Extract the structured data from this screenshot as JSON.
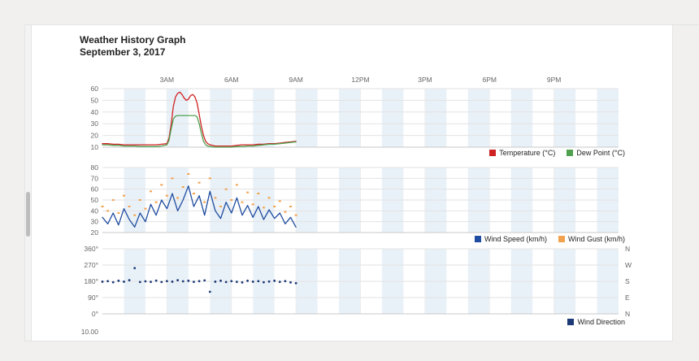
{
  "header": {
    "title": "Weather History Graph",
    "date": "September 3, 2017"
  },
  "bottom_partial_tick": "10.00",
  "style": {
    "band": "#e9f1f8",
    "grid": "#e2e2e2",
    "vgrid": "#ececec",
    "axis": "#c9c9c9",
    "tick_color": "#666666"
  },
  "chart_data": [
    {
      "type": "line",
      "title": "Temperature and Dew Point",
      "x_unit": "hour",
      "x_domain": [
        0,
        24
      ],
      "y_domain": [
        10,
        60
      ],
      "y_ticks": [
        10,
        20,
        30,
        40,
        50,
        60
      ],
      "y_suffix": "",
      "time_labels": [
        {
          "h": 3,
          "label": "3AM"
        },
        {
          "h": 6,
          "label": "6AM"
        },
        {
          "h": 9,
          "label": "9AM"
        },
        {
          "h": 12,
          "label": "12PM"
        },
        {
          "h": 15,
          "label": "3PM"
        },
        {
          "h": 18,
          "label": "6PM"
        },
        {
          "h": 21,
          "label": "9PM"
        }
      ],
      "x": [
        0,
        0.25,
        0.5,
        0.75,
        1,
        1.25,
        1.5,
        1.75,
        2,
        2.25,
        2.5,
        2.75,
        3,
        3.1,
        3.2,
        3.3,
        3.4,
        3.5,
        3.6,
        3.7,
        3.8,
        3.9,
        4,
        4.1,
        4.2,
        4.3,
        4.4,
        4.5,
        4.6,
        4.7,
        4.8,
        4.9,
        5,
        5.25,
        5.5,
        5.75,
        6,
        6.25,
        6.5,
        6.75,
        7,
        7.25,
        7.5,
        7.75,
        8,
        8.25,
        8.5,
        8.75,
        9
      ],
      "series": [
        {
          "name": "Temperature (°C)",
          "type": "line",
          "color": "#cf2222",
          "values": [
            13,
            13,
            12.5,
            12.5,
            12,
            12,
            12,
            12,
            12,
            12,
            12,
            12.5,
            13,
            18,
            30,
            45,
            53,
            56,
            57,
            55,
            52,
            50,
            51,
            54,
            55,
            53,
            48,
            38,
            28,
            20,
            15,
            13,
            12,
            11,
            11,
            11,
            11,
            11.5,
            12,
            12,
            12,
            12.5,
            12.5,
            13,
            13,
            13.5,
            14,
            14.5,
            15
          ]
        },
        {
          "name": "Dew Point (°C)",
          "type": "line",
          "color": "#4fa14f",
          "values": [
            12,
            12,
            11.5,
            11.5,
            11,
            11,
            11,
            10.5,
            10.5,
            10.5,
            10.5,
            11,
            12,
            16,
            26,
            34,
            36.5,
            37,
            37,
            37,
            37,
            37,
            37,
            37,
            37,
            37,
            36,
            30,
            22,
            15,
            12,
            11,
            10.5,
            10,
            10,
            10,
            10,
            10.5,
            10.5,
            11,
            11,
            11.5,
            12,
            12.5,
            12.5,
            13,
            13.5,
            14,
            14.5
          ]
        }
      ]
    },
    {
      "type": "line",
      "title": "Wind Speed and Wind Gust",
      "x_unit": "hour",
      "x_domain": [
        0,
        24
      ],
      "y_domain": [
        20,
        80
      ],
      "y_ticks": [
        20,
        30,
        40,
        50,
        60,
        70,
        80
      ],
      "y_suffix": "",
      "x": [
        0,
        0.25,
        0.5,
        0.75,
        1,
        1.25,
        1.5,
        1.75,
        2,
        2.25,
        2.5,
        2.75,
        3,
        3.25,
        3.5,
        3.75,
        4,
        4.25,
        4.5,
        4.75,
        5,
        5.25,
        5.5,
        5.75,
        6,
        6.25,
        6.5,
        6.75,
        7,
        7.25,
        7.5,
        7.75,
        8,
        8.25,
        8.5,
        8.75,
        9
      ],
      "series": [
        {
          "name": "Wind Speed (km/h)",
          "type": "line",
          "color": "#1e4ca0",
          "values": [
            34,
            28,
            38,
            27,
            42,
            32,
            25,
            38,
            30,
            46,
            36,
            50,
            42,
            56,
            40,
            50,
            63,
            44,
            54,
            36,
            58,
            40,
            33,
            48,
            38,
            52,
            36,
            45,
            34,
            44,
            32,
            41,
            33,
            38,
            28,
            34,
            25
          ]
        },
        {
          "name": "Wind Gust (km/h)",
          "type": "scatter",
          "marker": "dash",
          "color": "#f2a24e",
          "values": [
            44,
            40,
            50,
            38,
            54,
            44,
            36,
            50,
            42,
            58,
            48,
            64,
            54,
            70,
            52,
            62,
            74,
            56,
            66,
            48,
            70,
            52,
            44,
            60,
            50,
            64,
            48,
            57,
            46,
            56,
            43,
            52,
            44,
            49,
            39,
            44,
            36
          ]
        }
      ]
    },
    {
      "type": "scatter",
      "title": "Wind Direction",
      "x_unit": "hour",
      "x_domain": [
        0,
        24
      ],
      "y_domain": [
        0,
        360
      ],
      "y_ticks": [
        0,
        90,
        180,
        270,
        360
      ],
      "y_suffix": "°",
      "right_labels": [
        "N",
        "E",
        "S",
        "W",
        "N"
      ],
      "x": [
        0,
        0.25,
        0.5,
        0.75,
        1,
        1.25,
        1.5,
        1.75,
        2,
        2.25,
        2.5,
        2.75,
        3,
        3.25,
        3.5,
        3.75,
        4,
        4.25,
        4.5,
        4.75,
        5,
        5.25,
        5.5,
        5.75,
        6,
        6.25,
        6.5,
        6.75,
        7,
        7.25,
        7.5,
        7.75,
        8,
        8.25,
        8.5,
        8.75,
        9
      ],
      "series": [
        {
          "name": "Wind Direction",
          "type": "scatter",
          "marker": "dot",
          "color": "#1c3a77",
          "values": [
            178,
            181,
            175,
            183,
            178,
            186,
            253,
            176,
            180,
            177,
            184,
            176,
            181,
            178,
            186,
            180,
            183,
            177,
            181,
            185,
            122,
            178,
            183,
            176,
            181,
            177,
            174,
            183,
            178,
            181,
            175,
            179,
            183,
            177,
            181,
            174,
            170
          ]
        }
      ]
    }
  ]
}
